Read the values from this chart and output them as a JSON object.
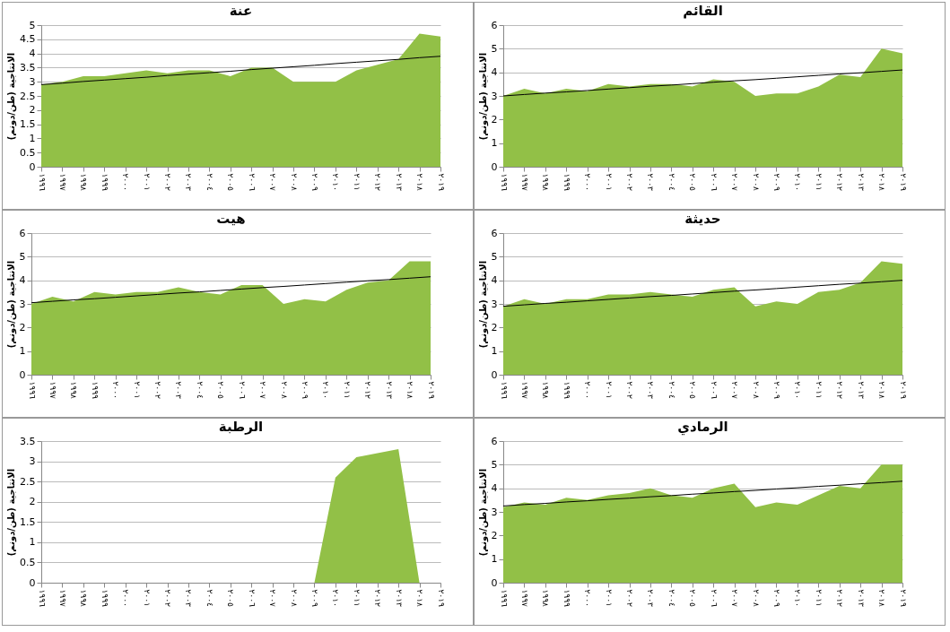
{
  "chart_data": [
    {
      "type": "area",
      "title": "عنة",
      "ylabel": "الانتاجية (طن/دونم)",
      "categories": [
        "١٩٩٦",
        "١٩٩٧",
        "١٩٩٨",
        "١٩٩٩",
        "٢٠٠٠",
        "٢٠٠١",
        "٢٠٠٢",
        "٢٠٠٣",
        "٢٠٠٤",
        "٢٠٠٥",
        "٢٠٠٦",
        "٢٠٠٧",
        "٢٠٠٨",
        "٢٠٠٩",
        "٢٠١٠",
        "٢٠١١",
        "٢٠١٢",
        "٢٠١٣",
        "٢٠١٨",
        "٢٠١٩"
      ],
      "ylim": [
        0,
        5
      ],
      "yticks": [
        0,
        0.5,
        1,
        1.5,
        2,
        2.5,
        3,
        3.5,
        4,
        4.5,
        5
      ],
      "grid": "y",
      "series": [
        {
          "color": "#92c047",
          "values": [
            2.9,
            3.0,
            3.2,
            3.2,
            3.3,
            3.4,
            3.3,
            3.4,
            3.4,
            3.2,
            3.5,
            3.5,
            3.0,
            3.0,
            3.0,
            3.4,
            3.6,
            3.8,
            4.7,
            4.6
          ]
        },
        {
          "type": "line",
          "color": "#000000",
          "values": [
            2.9,
            2.95,
            3.01,
            3.06,
            3.11,
            3.16,
            3.22,
            3.27,
            3.32,
            3.37,
            3.43,
            3.48,
            3.53,
            3.58,
            3.64,
            3.69,
            3.74,
            3.79,
            3.85,
            3.9
          ]
        }
      ]
    },
    {
      "type": "area",
      "title": "القائم",
      "ylabel": "الانتاجية (طن/دونم)",
      "categories": [
        "١٩٩٦",
        "١٩٩٧",
        "١٩٩٨",
        "١٩٩٩",
        "٢٠٠٠",
        "٢٠٠١",
        "٢٠٠٢",
        "٢٠٠٣",
        "٢٠٠٤",
        "٢٠٠٥",
        "٢٠٠٦",
        "٢٠٠٧",
        "٢٠٠٨",
        "٢٠٠٩",
        "٢٠١٠",
        "٢٠١١",
        "٢٠١٢",
        "٢٠١٣",
        "٢٠١٨",
        "٢٠١٩"
      ],
      "ylim": [
        0,
        6
      ],
      "yticks": [
        0,
        1,
        2,
        3,
        4,
        5,
        6
      ],
      "grid": "y",
      "series": [
        {
          "color": "#92c047",
          "values": [
            3.0,
            3.3,
            3.1,
            3.3,
            3.2,
            3.5,
            3.4,
            3.5,
            3.5,
            3.4,
            3.7,
            3.6,
            3.0,
            3.1,
            3.1,
            3.4,
            3.9,
            3.8,
            5.0,
            4.8
          ]
        },
        {
          "type": "line",
          "color": "#000000",
          "values": [
            3.0,
            3.06,
            3.12,
            3.17,
            3.23,
            3.29,
            3.35,
            3.41,
            3.46,
            3.52,
            3.58,
            3.64,
            3.69,
            3.75,
            3.81,
            3.87,
            3.93,
            3.98,
            4.04,
            4.1
          ]
        }
      ]
    },
    {
      "type": "area",
      "title": "هيت",
      "ylabel": "الانتاجية (طن/دونم)",
      "categories": [
        "١٩٩٦",
        "١٩٩٧",
        "١٩٩٨",
        "١٩٩٩",
        "٢٠٠٠",
        "٢٠٠١",
        "٢٠٠٢",
        "٢٠٠٣",
        "٢٠٠٤",
        "٢٠٠٥",
        "٢٠٠٦",
        "٢٠٠٧",
        "٢٠٠٨",
        "٢٠٠٩",
        "٢٠١٠",
        "٢٠١١",
        "٢٠١٢",
        "٢٠١٣",
        "٢٠١٨",
        "٢٠١٩"
      ],
      "ylim": [
        0,
        6
      ],
      "yticks": [
        0,
        1,
        2,
        3,
        4,
        5,
        6
      ],
      "grid": "y",
      "series": [
        {
          "color": "#92c047",
          "values": [
            3.0,
            3.3,
            3.1,
            3.5,
            3.4,
            3.5,
            3.5,
            3.7,
            3.5,
            3.4,
            3.8,
            3.8,
            3.0,
            3.2,
            3.1,
            3.6,
            3.9,
            4.0,
            4.8,
            4.8
          ]
        },
        {
          "type": "line",
          "color": "#000000",
          "values": [
            3.05,
            3.11,
            3.17,
            3.22,
            3.28,
            3.34,
            3.4,
            3.46,
            3.51,
            3.57,
            3.63,
            3.69,
            3.74,
            3.8,
            3.86,
            3.92,
            3.98,
            4.03,
            4.09,
            4.15
          ]
        }
      ]
    },
    {
      "type": "area",
      "title": "حديثة",
      "ylabel": "الانتاجية (طن/دونم)",
      "categories": [
        "١٩٩٦",
        "١٩٩٧",
        "١٩٩٨",
        "١٩٩٩",
        "٢٠٠٠",
        "٢٠٠١",
        "٢٠٠٢",
        "٢٠٠٣",
        "٢٠٠٤",
        "٢٠٠٥",
        "٢٠٠٦",
        "٢٠٠٧",
        "٢٠٠٨",
        "٢٠٠٩",
        "٢٠١٠",
        "٢٠١١",
        "٢٠١٢",
        "٢٠١٣",
        "٢٠١٨",
        "٢٠١٩"
      ],
      "ylim": [
        0,
        6
      ],
      "yticks": [
        0,
        1,
        2,
        3,
        4,
        5,
        6
      ],
      "grid": "y",
      "series": [
        {
          "color": "#92c047",
          "values": [
            2.9,
            3.2,
            3.0,
            3.2,
            3.2,
            3.4,
            3.4,
            3.5,
            3.4,
            3.3,
            3.6,
            3.7,
            2.9,
            3.1,
            3.0,
            3.5,
            3.6,
            3.9,
            4.8,
            4.7
          ]
        },
        {
          "type": "line",
          "color": "#000000",
          "values": [
            2.9,
            2.96,
            3.02,
            3.07,
            3.13,
            3.19,
            3.25,
            3.31,
            3.36,
            3.42,
            3.48,
            3.54,
            3.59,
            3.65,
            3.71,
            3.77,
            3.83,
            3.88,
            3.94,
            4.0
          ]
        }
      ]
    },
    {
      "type": "area",
      "title": "الرطبة",
      "ylabel": "الانتاجية (طن/دونم)",
      "categories": [
        "١٩٩٦",
        "١٩٩٧",
        "١٩٩٨",
        "١٩٩٩",
        "٢٠٠٠",
        "٢٠٠١",
        "٢٠٠٢",
        "٢٠٠٣",
        "٢٠٠٤",
        "٢٠٠٥",
        "٢٠٠٦",
        "٢٠٠٧",
        "٢٠٠٨",
        "٢٠٠٩",
        "٢٠١٠",
        "٢٠١١",
        "٢٠١٢",
        "٢٠١٣",
        "٢٠١٨",
        "٢٠١٩"
      ],
      "ylim": [
        0,
        3.5
      ],
      "yticks": [
        0,
        0.5,
        1,
        1.5,
        2,
        2.5,
        3,
        3.5
      ],
      "grid": "y",
      "series": [
        {
          "color": "#92c047",
          "values": [
            0,
            0,
            0,
            0,
            0,
            0,
            0,
            0,
            0,
            0,
            0,
            0,
            0,
            0,
            2.6,
            3.1,
            3.2,
            3.3,
            0,
            0
          ]
        }
      ]
    },
    {
      "type": "area",
      "title": "الرمادي",
      "ylabel": "الانتاجية (طن/دونم)",
      "categories": [
        "١٩٩٦",
        "١٩٩٧",
        "١٩٩٨",
        "١٩٩٩",
        "٢٠٠٠",
        "٢٠٠١",
        "٢٠٠٢",
        "٢٠٠٣",
        "٢٠٠٤",
        "٢٠٠٥",
        "٢٠٠٦",
        "٢٠٠٧",
        "٢٠٠٨",
        "٢٠٠٩",
        "٢٠١٠",
        "٢٠١١",
        "٢٠١٢",
        "٢٠١٣",
        "٢٠١٨",
        "٢٠١٩"
      ],
      "ylim": [
        0,
        6
      ],
      "yticks": [
        0,
        1,
        2,
        3,
        4,
        5,
        6
      ],
      "grid": "y",
      "series": [
        {
          "color": "#92c047",
          "values": [
            3.2,
            3.4,
            3.3,
            3.6,
            3.5,
            3.7,
            3.8,
            4.0,
            3.7,
            3.6,
            4.0,
            4.2,
            3.2,
            3.4,
            3.3,
            3.7,
            4.1,
            4.0,
            5.0,
            5.0
          ]
        },
        {
          "type": "line",
          "color": "#000000",
          "values": [
            3.25,
            3.31,
            3.36,
            3.42,
            3.47,
            3.53,
            3.58,
            3.64,
            3.69,
            3.75,
            3.8,
            3.86,
            3.91,
            3.97,
            4.02,
            4.08,
            4.13,
            4.19,
            4.24,
            4.3
          ]
        }
      ]
    }
  ]
}
